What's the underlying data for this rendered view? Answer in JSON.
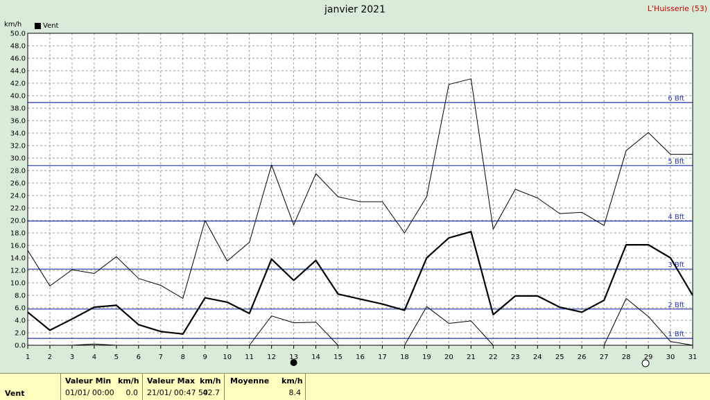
{
  "chart_data": {
    "type": "line",
    "title": "janvier 2021",
    "station": "L'Huisserie (53)",
    "ylabel": "km/h",
    "ylim": [
      0,
      50
    ],
    "xlim": [
      1,
      31
    ],
    "grid": true,
    "legend": "top-left",
    "y_ticks": [
      "0.0",
      "2.0",
      "4.0",
      "6.0",
      "8.0",
      "10.0",
      "12.0",
      "14.0",
      "16.0",
      "18.0",
      "20.0",
      "22.0",
      "24.0",
      "26.0",
      "28.0",
      "30.0",
      "32.0",
      "34.0",
      "36.0",
      "38.0",
      "40.0",
      "42.0",
      "44.0",
      "46.0",
      "48.0",
      "50.0"
    ],
    "x": [
      1,
      2,
      3,
      4,
      5,
      6,
      7,
      8,
      9,
      10,
      11,
      12,
      13,
      14,
      15,
      16,
      17,
      18,
      19,
      20,
      21,
      22,
      23,
      24,
      25,
      26,
      27,
      28,
      29,
      30,
      31
    ],
    "series": [
      {
        "name": "Vent",
        "role": "mean",
        "color": "#000000",
        "values": [
          5.3,
          2.4,
          4.2,
          6.1,
          6.4,
          3.3,
          2.2,
          1.8,
          7.6,
          6.9,
          5.1,
          13.8,
          10.4,
          13.6,
          8.2,
          7.4,
          6.6,
          5.6,
          14.0,
          17.2,
          18.2,
          4.9,
          7.9,
          7.9,
          6.1,
          5.3,
          7.2,
          16.1,
          16.1,
          14.0,
          8.0
        ]
      },
      {
        "role": "max",
        "color": "#000000",
        "values": [
          15.2,
          9.5,
          12.1,
          11.5,
          14.2,
          10.7,
          9.6,
          7.5,
          20.0,
          13.5,
          16.5,
          28.9,
          19.3,
          27.5,
          23.8,
          23.0,
          23.0,
          18.0,
          23.8,
          41.8,
          42.7,
          18.6,
          25.0,
          23.6,
          21.1,
          21.3,
          19.2,
          31.2,
          34.1,
          30.6,
          30.6
        ]
      },
      {
        "role": "min",
        "color": "#000000",
        "values": [
          0.0,
          0.0,
          0.0,
          0.2,
          0.0,
          0.0,
          0.0,
          0.0,
          0.0,
          0.0,
          0.0,
          4.7,
          3.6,
          3.7,
          0.0,
          0.0,
          0.0,
          0.0,
          6.2,
          3.5,
          3.9,
          0.0,
          0.0,
          0.0,
          0.0,
          0.0,
          0.0,
          7.5,
          4.6,
          0.6,
          0.0
        ]
      }
    ],
    "beaufort": [
      {
        "label": "1 Bft",
        "value": 1.1
      },
      {
        "label": "2 Bft",
        "value": 5.8
      },
      {
        "label": "3 Bft",
        "value": 12.2
      },
      {
        "label": "4 Bft",
        "value": 19.9
      },
      {
        "label": "5 Bft",
        "value": 28.8
      },
      {
        "label": "6 Bft",
        "value": 38.9
      }
    ],
    "moon": [
      {
        "day": 13,
        "phase": "new-moon"
      },
      {
        "day": 29,
        "phase": "full-moon"
      }
    ]
  },
  "footer": {
    "row_label": "Vent",
    "min_header": "Valeur Min",
    "min_unit": "km/h",
    "min_date": "01/01/  00:00",
    "min_value": "0.0",
    "max_header": "Valeur Max",
    "max_unit": "km/h",
    "max_date": "21/01/  00:47",
    "max_time2": "50",
    "max_value": "42.7",
    "avg_header": "Moyenne",
    "avg_unit": "km/h",
    "avg_value": "8.4"
  }
}
